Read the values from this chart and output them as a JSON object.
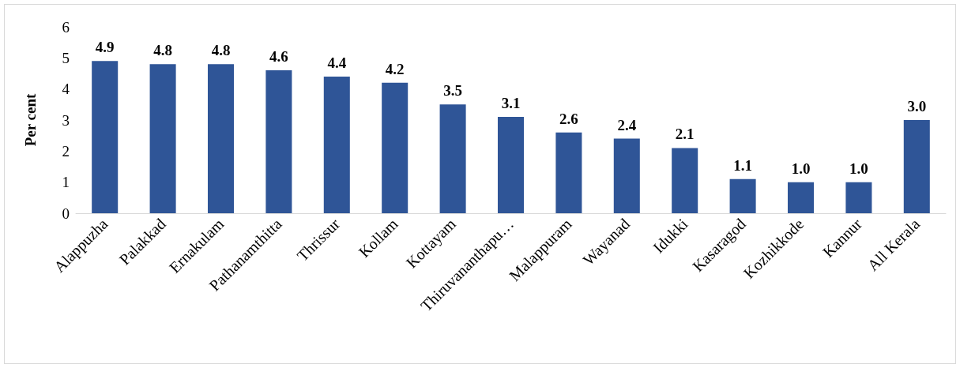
{
  "chart_data": {
    "type": "bar",
    "ylabel": "Per cent",
    "categories": [
      "Alappuzha",
      "Palakkad",
      "Ernakulam",
      "Pathanamthitta",
      "Thrissur",
      "Kollam",
      "Kottayam",
      "Thiruvananthapu…",
      "Malappuram",
      "Wayanad",
      "Idukki",
      "Kasaragod",
      "Kozhikkode",
      "Kannur",
      "All Kerala"
    ],
    "values": [
      4.9,
      4.8,
      4.8,
      4.6,
      4.4,
      4.2,
      3.5,
      3.1,
      2.6,
      2.4,
      2.1,
      1.1,
      1.0,
      1.0,
      3.0
    ],
    "value_labels": [
      "4.9",
      "4.8",
      "4.8",
      "4.6",
      "4.4",
      "4.2",
      "3.5",
      "3.1",
      "2.6",
      "2.4",
      "2.1",
      "1.1",
      "1.0",
      "1.0",
      "3.0"
    ],
    "color": "#2f5597",
    "ylim": [
      0,
      6
    ],
    "yticks": [
      0,
      1,
      2,
      3,
      4,
      5,
      6
    ],
    "grid": false
  }
}
